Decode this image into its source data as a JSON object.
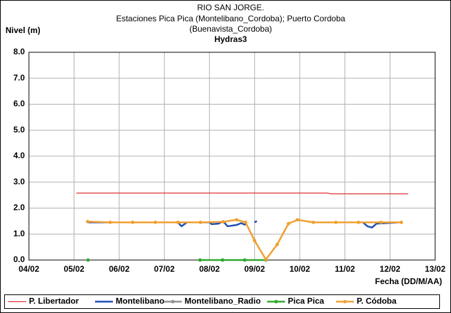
{
  "chart_data": {
    "type": "line",
    "title": [
      "RIO SAN JORGE.",
      "Estaciones Pica Pica (Montelibano_Cordoba); Puerto Cordoba",
      "(Buenavista_Cordoba)",
      "Hydras3"
    ],
    "ylabel": "Nivel (m)",
    "xlabel": "Fecha (DD/M/AA)",
    "xlim": [
      4,
      13
    ],
    "ylim": [
      0,
      8
    ],
    "xticks": [
      {
        "value": 4,
        "label": "04/02"
      },
      {
        "value": 5,
        "label": "05/02"
      },
      {
        "value": 6,
        "label": "06/02"
      },
      {
        "value": 7,
        "label": "07/02"
      },
      {
        "value": 8,
        "label": "08/02"
      },
      {
        "value": 9,
        "label": "09/02"
      },
      {
        "value": 10,
        "label": "10/02"
      },
      {
        "value": 11,
        "label": "11/02"
      },
      {
        "value": 12,
        "label": "12/02"
      },
      {
        "value": 13,
        "label": "13/02"
      }
    ],
    "yticks": [
      {
        "value": 0,
        "label": "0.0"
      },
      {
        "value": 1,
        "label": "1.0"
      },
      {
        "value": 2,
        "label": "2.0"
      },
      {
        "value": 3,
        "label": "3.0"
      },
      {
        "value": 4,
        "label": "4.0"
      },
      {
        "value": 5,
        "label": "5.0"
      },
      {
        "value": 6,
        "label": "6.0"
      },
      {
        "value": 7,
        "label": "7.0"
      },
      {
        "value": 8,
        "label": "8.0"
      }
    ],
    "grid": true,
    "series": [
      {
        "name": "P. Libertador",
        "color": "#e03030",
        "marker": false,
        "x": [
          5.05,
          10.6,
          10.7,
          12.4
        ],
        "values": [
          2.58,
          2.58,
          2.55,
          2.55
        ]
      },
      {
        "name": "Montelibano",
        "color": "#1f4fb5",
        "marker": false,
        "x": [
          5.3,
          7.3,
          7.38,
          7.5,
          8.0,
          8.05,
          8.2,
          8.3,
          8.4,
          8.6,
          8.7,
          8.8,
          8.85,
          9.0,
          9.05,
          9.1,
          11.4,
          11.5,
          11.6,
          11.7,
          12.2
        ],
        "values": [
          1.45,
          1.45,
          1.3,
          1.45,
          1.45,
          1.38,
          1.4,
          1.5,
          1.3,
          1.35,
          1.42,
          1.35,
          null,
          1.45,
          1.5,
          null,
          1.45,
          1.3,
          1.25,
          1.4,
          1.45
        ]
      },
      {
        "name": "Montelibano_Radio",
        "color": "#909090",
        "marker": true,
        "x": [],
        "values": []
      },
      {
        "name": "Pica Pica",
        "color": "#2ea82e",
        "marker": true,
        "x": [
          5.31,
          5.4,
          7.79,
          8.29,
          8.78,
          9.25
        ],
        "values": [
          0,
          null,
          0,
          0,
          0,
          0
        ]
      },
      {
        "name": "P. Códoba",
        "color": "#f0a030",
        "marker": true,
        "x": [
          5.3,
          5.8,
          6.3,
          6.8,
          7.3,
          7.8,
          8.3,
          8.6,
          8.8,
          9.0,
          9.25,
          9.5,
          9.75,
          9.95,
          10.3,
          10.8,
          11.3,
          11.8,
          12.25
        ],
        "values": [
          1.48,
          1.45,
          1.45,
          1.45,
          1.45,
          1.45,
          1.47,
          1.55,
          1.45,
          0.75,
          0.02,
          0.6,
          1.4,
          1.55,
          1.45,
          1.45,
          1.45,
          1.45,
          1.45
        ]
      }
    ]
  }
}
